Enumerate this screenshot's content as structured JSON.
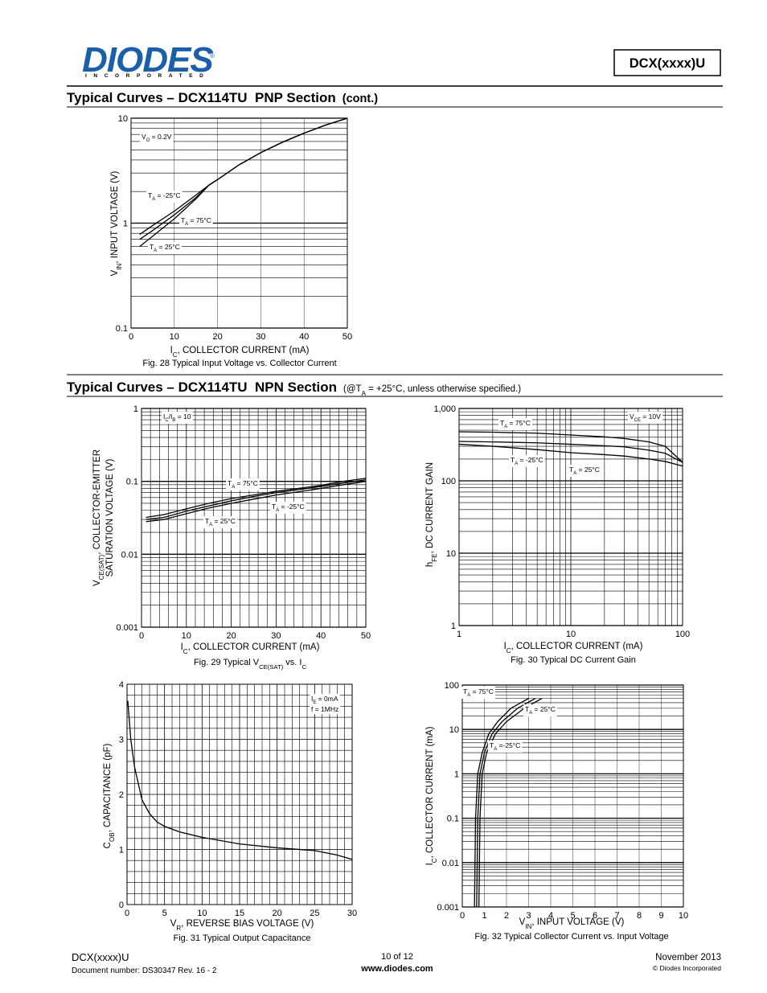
{
  "header": {
    "logo": "DIODES",
    "registered": "®",
    "logo_sub": "INCORPORATED",
    "part": "DCX(xxxx)U"
  },
  "sections": [
    {
      "title": "Typical Curves – DCX114TU  PNP Section",
      "note": "(cont.)"
    },
    {
      "title": "Typical Curves – DCX114TU  NPN Section",
      "note": [
        "(@T",
        "A",
        " = +25°C, unless otherwise specified.)"
      ]
    }
  ],
  "chart_data": [
    {
      "type": "line",
      "caption": "Fig. 28 Typical Input Voltage vs. Collector Current",
      "xlabel": [
        "I",
        "C",
        ", COLLECTOR CURRENT (mA)"
      ],
      "ylabel": [
        "V",
        "IN",
        ", INPUT VOLTAGE (V)"
      ],
      "xlim": [
        0,
        50
      ],
      "xticks": [
        0,
        10,
        20,
        30,
        40,
        50
      ],
      "ylim": [
        0.1,
        10
      ],
      "yticks": [
        0.1,
        1,
        10
      ],
      "ylog": true,
      "grid": true,
      "minor_grid": "y",
      "x": [
        2,
        5,
        10,
        15,
        18,
        20,
        25,
        30,
        35,
        40,
        45,
        50
      ],
      "series": [
        {
          "name": [
            "T",
            "A",
            " = -25°C"
          ],
          "color": "#000000",
          "values": [
            0.78,
            0.95,
            1.3,
            1.85,
            2.3,
            2.6,
            3.6,
            4.7,
            5.9,
            7.2,
            8.6,
            10
          ]
        },
        {
          "name": [
            "T",
            "A",
            " = 75°C"
          ],
          "color": "#000000",
          "values": [
            0.7,
            0.85,
            1.2,
            1.75,
            2.3,
            2.6,
            3.6,
            4.7,
            5.9,
            7.2,
            8.6,
            10
          ]
        },
        {
          "name": [
            "T",
            "A",
            " = 25°C"
          ],
          "color": "#000000",
          "values": [
            0.6,
            0.75,
            1.1,
            1.7,
            2.3,
            2.6,
            3.6,
            4.7,
            5.9,
            7.2,
            8.6,
            10
          ]
        }
      ],
      "annotations": [
        [
          "V",
          "O",
          " = 0.2V"
        ],
        [
          "T",
          "A",
          " = -25°C"
        ],
        [
          "T",
          "A",
          " = 75°C"
        ],
        [
          "T",
          "A",
          " = 25°C"
        ]
      ]
    },
    {
      "type": "line",
      "caption": [
        "Fig. 29 Typical V",
        "CE(SAT)",
        " vs. I",
        "C"
      ],
      "xlabel": [
        "I",
        "C",
        ", COLLECTOR CURRENT (mA)"
      ],
      "ylabel": [
        "V",
        "CE(SAT)",
        ", COLLECTOR-EMITTER"
      ],
      "ylabel2": "SATURATION VOLTAGE (V)",
      "xlim": [
        0,
        50
      ],
      "xticks": [
        0,
        10,
        20,
        30,
        40,
        50
      ],
      "ylim": [
        0.001,
        1
      ],
      "yticks": [
        0.001,
        0.01,
        0.1,
        1
      ],
      "ylog": true,
      "grid": true,
      "minor_grid": "xy",
      "x": [
        1,
        5,
        10,
        15,
        20,
        25,
        30,
        35,
        40,
        45,
        50
      ],
      "series": [
        {
          "name": [
            "T",
            "A",
            " = 75°C"
          ],
          "color": "#000000",
          "values": [
            0.032,
            0.035,
            0.042,
            0.05,
            0.058,
            0.065,
            0.073,
            0.08,
            0.088,
            0.1,
            0.11
          ]
        },
        {
          "name": [
            "T",
            "A",
            " = -25°C"
          ],
          "color": "#000000",
          "values": [
            0.03,
            0.032,
            0.039,
            0.046,
            0.054,
            0.062,
            0.07,
            0.077,
            0.085,
            0.095,
            0.105
          ]
        },
        {
          "name": [
            "T",
            "A",
            " = 25°C"
          ],
          "color": "#000000",
          "values": [
            0.028,
            0.03,
            0.036,
            0.043,
            0.05,
            0.057,
            0.065,
            0.072,
            0.08,
            0.09,
            0.1
          ]
        }
      ],
      "annotations": [
        [
          "I",
          "C",
          "/I",
          "B",
          " = 10"
        ],
        [
          "T",
          "A",
          " = 75°C"
        ],
        [
          "T",
          "A",
          " = -25°C"
        ],
        [
          "T",
          "A",
          " = 25°C"
        ]
      ]
    },
    {
      "type": "line",
      "caption": "Fig. 30 Typical DC Current Gain",
      "xlabel": [
        "I",
        "C",
        ", COLLECTOR CURRENT (mA)"
      ],
      "ylabel": [
        "h",
        "FE",
        ", DC CURRENT GAIN"
      ],
      "xlim": [
        1,
        100
      ],
      "xticks": [
        1,
        10,
        100
      ],
      "xlog": true,
      "ylim": [
        1,
        1000
      ],
      "yticks": [
        1,
        10,
        100,
        {
          "value": 1000,
          "label": "1,000"
        }
      ],
      "ylog": true,
      "grid": true,
      "minor_grid": "xy",
      "x": [
        1,
        2,
        5,
        10,
        20,
        30,
        50,
        70,
        100
      ],
      "series": [
        {
          "name": [
            "T",
            "A",
            " = 75°C"
          ],
          "color": "#000000",
          "values": [
            476,
            470,
            455,
            430,
            405,
            385,
            345,
            300,
            180
          ]
        },
        {
          "name": [
            "T",
            "A",
            " = 25°C"
          ],
          "color": "#000000",
          "values": [
            350,
            345,
            335,
            320,
            305,
            295,
            265,
            240,
            180
          ]
        },
        {
          "name": [
            "T",
            "A",
            " = -25°C"
          ],
          "color": "#000000",
          "values": [
            320,
            300,
            270,
            245,
            230,
            220,
            200,
            185,
            160
          ]
        }
      ],
      "annotations": [
        [
          "V",
          "CE",
          " = 10V"
        ],
        [
          "T",
          "A",
          " = 75°C"
        ],
        [
          "T",
          "A",
          " = -25°C"
        ],
        [
          "T",
          "A",
          " = 25°C"
        ]
      ]
    },
    {
      "type": "line",
      "caption": "Fig. 31 Typical Output Capacitance",
      "xlabel": [
        "V",
        "R",
        ", REVERSE BIAS VOLTAGE (V)"
      ],
      "ylabel": [
        "C",
        "OB",
        ", CAPACITANCE (pF)"
      ],
      "xlim": [
        0,
        30
      ],
      "xticks": [
        0,
        5,
        10,
        15,
        20,
        25,
        30
      ],
      "ylim": [
        0,
        4
      ],
      "yticks": [
        0,
        1,
        2,
        3,
        4
      ],
      "grid": true,
      "minor_grid": "xy",
      "x": [
        0.1,
        0.5,
        1,
        2,
        3,
        4,
        5,
        7,
        10,
        15,
        20,
        25,
        28,
        30
      ],
      "series": [
        {
          "color": "#000000",
          "values": [
            3.7,
            3.0,
            2.5,
            1.9,
            1.65,
            1.5,
            1.42,
            1.32,
            1.22,
            1.1,
            1.03,
            0.98,
            0.9,
            0.82
          ]
        }
      ],
      "annotations": [
        [
          "I",
          "E",
          " = 0mA"
        ],
        "f = 1MHz"
      ]
    },
    {
      "type": "line",
      "caption": "Fig. 32 Typical Collector Current vs. Input Voltage",
      "xlabel": [
        "V",
        "IN",
        ", INPUT VOLTAGE (V)"
      ],
      "ylabel": [
        "I",
        "C",
        ", COLLECTOR CURRENT (mA)"
      ],
      "xlim": [
        0,
        10
      ],
      "xticks": [
        0,
        1,
        2,
        3,
        4,
        5,
        6,
        7,
        8,
        9,
        10
      ],
      "ylim": [
        0.001,
        100
      ],
      "yticks": [
        0.001,
        0.01,
        0.1,
        1,
        10,
        100
      ],
      "ylog": true,
      "grid": true,
      "minor_grid": "y",
      "series": [
        {
          "name": [
            "T",
            "A",
            " = 75°C"
          ],
          "color": "#000000",
          "x": [
            0.55,
            0.6,
            0.7,
            0.9,
            1.2,
            1.6,
            2.2,
            3
          ],
          "values": [
            0.001,
            0.1,
            1,
            3,
            8,
            15,
            30,
            50
          ]
        },
        {
          "name": [
            "T",
            "A",
            " = 25°C"
          ],
          "color": "#000000",
          "x": [
            0.65,
            0.7,
            0.8,
            1,
            1.35,
            1.8,
            2.5,
            3.3
          ],
          "values": [
            0.001,
            0.1,
            1,
            3,
            8,
            15,
            30,
            50
          ]
        },
        {
          "name": [
            "T",
            "A",
            " =-25°C"
          ],
          "color": "#000000",
          "x": [
            0.75,
            0.8,
            0.9,
            1.1,
            1.5,
            2,
            2.8,
            3.6
          ],
          "values": [
            0.001,
            0.1,
            1,
            3,
            8,
            15,
            30,
            50
          ]
        }
      ],
      "annotations": [
        [
          "T",
          "A",
          " = 75°C"
        ],
        [
          "T",
          "A",
          " = 25°C"
        ],
        [
          "T",
          "A",
          " =-25°C"
        ]
      ]
    }
  ],
  "footer": {
    "part": "DCX(xxxx)U",
    "docnum": "Document number: DS30347 Rev. 16 - 2",
    "page": "10 of 12",
    "url": "www.diodes.com",
    "date": "November 2013",
    "copyright": "© Diodes Incorporated"
  }
}
